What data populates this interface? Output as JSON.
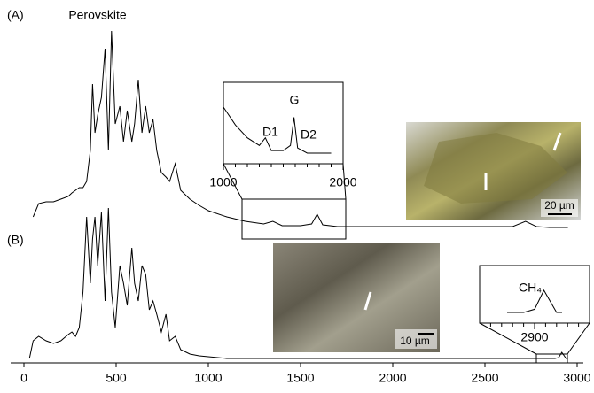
{
  "chart_data": {
    "type": "line",
    "annotations": [
      "Perovskite"
    ],
    "x": [
      30,
      50,
      80,
      120,
      160,
      200,
      240,
      260,
      280,
      300,
      320,
      340,
      360,
      372,
      385,
      400,
      420,
      440,
      458,
      475,
      495,
      520,
      540,
      560,
      585,
      600,
      620,
      640,
      660,
      680,
      700,
      720,
      745,
      770,
      790,
      820,
      850,
      900,
      950,
      1000,
      1100,
      1200,
      1300,
      1350,
      1400,
      1500,
      1560,
      1590,
      1620,
      1700,
      1900,
      2100,
      2300,
      2500,
      2650,
      2720,
      2780,
      2850,
      2880,
      2900,
      2917,
      2940,
      2950
    ],
    "series": [
      {
        "name": "(A)",
        "color": "#000000",
        "values": [
          null,
          165,
          180,
          182,
          182,
          185,
          188,
          192,
          195,
          198,
          198,
          205,
          240,
          315,
          260,
          280,
          300,
          355,
          240,
          375,
          270,
          290,
          250,
          285,
          250,
          270,
          320,
          260,
          290,
          260,
          275,
          240,
          215,
          210,
          205,
          225,
          195,
          185,
          178,
          172,
          165,
          160,
          157,
          160,
          155,
          155,
          157,
          168,
          156,
          154,
          154,
          154,
          154,
          154,
          154,
          160,
          154,
          153,
          153,
          153,
          153,
          153,
          153
        ]
      },
      {
        "name": "(B)",
        "color": "#000000",
        "values": [
          5,
          25,
          30,
          25,
          22,
          25,
          32,
          35,
          30,
          40,
          80,
          165,
          90,
          140,
          165,
          110,
          170,
          70,
          175,
          80,
          40,
          110,
          90,
          65,
          130,
          90,
          70,
          110,
          100,
          60,
          70,
          55,
          35,
          55,
          25,
          30,
          15,
          10,
          8,
          7,
          5,
          5,
          5,
          5,
          5,
          5,
          5,
          5,
          5,
          5,
          5,
          5,
          5,
          5,
          5,
          5,
          5,
          5,
          5,
          6,
          12,
          5,
          5
        ]
      }
    ],
    "xlim": [
      0,
      3000
    ],
    "xticks": [
      0,
      500,
      1000,
      1500,
      2000,
      2500,
      3000
    ],
    "ylim": [
      0,
      380
    ],
    "insets": [
      {
        "series": 0,
        "xlim": [
          1000,
          2000
        ],
        "xticks": [
          1000,
          2000
        ],
        "labels": [
          "D1",
          "G",
          "D2"
        ]
      },
      {
        "series": 1,
        "xlim": [
          2800,
          3000
        ],
        "xticks": [
          2900
        ],
        "labels": [
          "CH₄"
        ]
      }
    ],
    "scale_bars": [
      "20 µm",
      "10 µm"
    ]
  }
}
